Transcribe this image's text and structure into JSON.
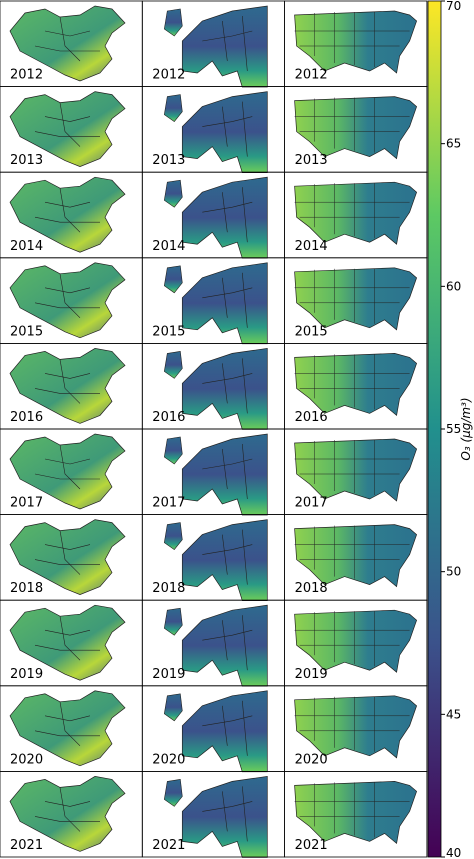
{
  "panels": {
    "years": [
      "2012",
      "2013",
      "2014",
      "2015",
      "2016",
      "2017",
      "2018",
      "2019",
      "2020",
      "2021"
    ]
  },
  "colorbar": {
    "label": "O₃ (μg/m³)",
    "lim": [
      40,
      70
    ],
    "ticks": [
      40,
      45,
      50,
      55,
      60,
      65,
      70
    ]
  }
}
